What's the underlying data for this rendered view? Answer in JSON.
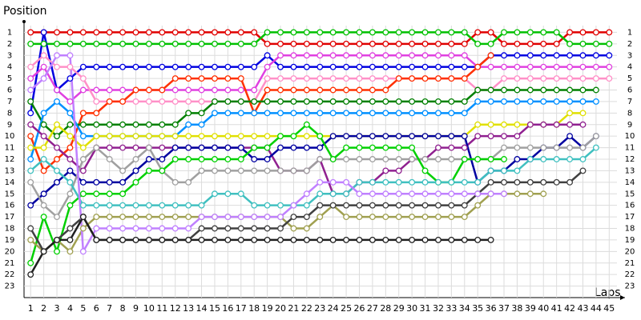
{
  "chart_data": {
    "type": "line",
    "ylabel": "Position",
    "xlabel": "Laps",
    "xlim": [
      0.5,
      46.2
    ],
    "ylim": [
      24,
      0
    ],
    "x": [
      1,
      2,
      3,
      4,
      5,
      6,
      7,
      8,
      9,
      10,
      11,
      12,
      13,
      14,
      15,
      16,
      17,
      18,
      19,
      20,
      21,
      22,
      23,
      24,
      25,
      26,
      27,
      28,
      29,
      30,
      31,
      32,
      33,
      34,
      35,
      36,
      37,
      38,
      39,
      40,
      41,
      42,
      43,
      44,
      45
    ],
    "yticks": [
      1,
      2,
      3,
      4,
      5,
      6,
      7,
      8,
      9,
      10,
      11,
      12,
      13,
      14,
      15,
      16,
      17,
      18,
      19,
      20,
      21,
      22,
      23
    ],
    "grid": true,
    "series": [
      {
        "color": "#e00000",
        "values": [
          1,
          1,
          1,
          1,
          1,
          1,
          1,
          1,
          1,
          1,
          1,
          1,
          1,
          1,
          1,
          1,
          1,
          1,
          2,
          2,
          2,
          2,
          2,
          2,
          2,
          2,
          2,
          2,
          2,
          2,
          2,
          2,
          2,
          2,
          1,
          1,
          2,
          2,
          2,
          2,
          2,
          1,
          1,
          1,
          1
        ]
      },
      {
        "color": "#00c000",
        "values": [
          2,
          2,
          2,
          2,
          2,
          2,
          2,
          2,
          2,
          2,
          2,
          2,
          2,
          2,
          2,
          2,
          2,
          2,
          1,
          1,
          1,
          1,
          1,
          1,
          1,
          1,
          1,
          1,
          1,
          1,
          1,
          1,
          1,
          1,
          2,
          2,
          1,
          1,
          1,
          1,
          1,
          2,
          2,
          2,
          2
        ]
      },
      {
        "color": "#0000e0",
        "values": [
          8,
          1,
          6,
          5,
          4,
          4,
          4,
          4,
          4,
          4,
          4,
          4,
          4,
          4,
          4,
          4,
          4,
          4,
          3,
          4,
          4,
          4,
          4,
          4,
          4,
          4,
          4,
          4,
          4,
          4,
          4,
          4,
          4,
          4,
          4,
          3,
          3,
          3,
          3,
          3,
          3,
          3,
          3,
          3,
          3
        ]
      },
      {
        "color": "#e040e0",
        "values": [
          5,
          4,
          6,
          7,
          6,
          6,
          6,
          6,
          6,
          6,
          6,
          6,
          6,
          6,
          6,
          6,
          6,
          6,
          4,
          3,
          3,
          3,
          3,
          3,
          3,
          3,
          3,
          3,
          3,
          3,
          3,
          3,
          3,
          3,
          4,
          4,
          4,
          4,
          4,
          4,
          4,
          4,
          4,
          4,
          4
        ]
      },
      {
        "color": "#ff90c8",
        "values": [
          4,
          3,
          4,
          4,
          5,
          7,
          7,
          7,
          7,
          7,
          7,
          7,
          7,
          7,
          7,
          7,
          7,
          7,
          5,
          5,
          5,
          5,
          5,
          5,
          5,
          5,
          5,
          5,
          5,
          5,
          5,
          5,
          5,
          5,
          6,
          6,
          5,
          5,
          5,
          5,
          5,
          5,
          5,
          5,
          5
        ]
      },
      {
        "color": "#ff3000",
        "values": [
          10,
          13,
          12,
          11,
          8,
          8,
          7,
          7,
          6,
          6,
          6,
          5,
          5,
          5,
          5,
          5,
          5,
          8,
          6,
          6,
          6,
          6,
          6,
          6,
          6,
          6,
          6,
          6,
          5,
          5,
          5,
          5,
          5,
          5,
          4,
          3,
          null,
          null,
          null,
          null,
          null,
          null,
          null,
          null,
          null
        ]
      },
      {
        "color": "#008000",
        "values": [
          7,
          9,
          10,
          9,
          9,
          9,
          9,
          9,
          9,
          9,
          9,
          9,
          8,
          8,
          7,
          7,
          7,
          7,
          7,
          7,
          7,
          7,
          7,
          7,
          7,
          7,
          7,
          7,
          7,
          7,
          7,
          7,
          7,
          7,
          6,
          6,
          6,
          6,
          6,
          6,
          6,
          6,
          6,
          6,
          null
        ]
      },
      {
        "color": "#0090ff",
        "values": [
          12,
          8,
          7,
          8,
          10,
          10,
          10,
          10,
          10,
          10,
          10,
          10,
          9,
          9,
          8,
          8,
          8,
          8,
          8,
          8,
          8,
          8,
          8,
          8,
          8,
          8,
          8,
          8,
          8,
          8,
          8,
          8,
          8,
          8,
          7,
          7,
          7,
          7,
          7,
          7,
          7,
          7,
          7,
          7,
          null
        ]
      },
      {
        "color": "#e0e000",
        "values": [
          11,
          11,
          9,
          10,
          11,
          10,
          10,
          10,
          10,
          10,
          10,
          10,
          10,
          10,
          10,
          10,
          10,
          10,
          10,
          10,
          10,
          10,
          10,
          10,
          10,
          10,
          10,
          10,
          10,
          10,
          10,
          10,
          10,
          10,
          9,
          9,
          9,
          9,
          9,
          9,
          9,
          8,
          8,
          null,
          null
        ]
      },
      {
        "color": "#902090",
        "values": [
          9,
          10,
          11,
          12,
          13,
          11,
          11,
          11,
          11,
          11,
          11,
          11,
          11,
          11,
          11,
          11,
          11,
          11,
          11,
          13,
          13,
          13,
          12,
          15,
          15,
          14,
          14,
          13,
          13,
          12,
          12,
          11,
          11,
          11,
          10,
          10,
          10,
          10,
          9,
          9,
          9,
          9,
          9,
          null,
          null
        ]
      },
      {
        "color": "#0000a0",
        "values": [
          16,
          15,
          14,
          13,
          14,
          14,
          14,
          14,
          13,
          12,
          12,
          11,
          11,
          11,
          11,
          11,
          11,
          12,
          12,
          11,
          11,
          11,
          11,
          10,
          10,
          10,
          10,
          10,
          10,
          10,
          10,
          10,
          10,
          10,
          14,
          13,
          13,
          12,
          12,
          11,
          11,
          10,
          11,
          10,
          null
        ]
      },
      {
        "color": "#a0a0a0",
        "values": [
          14,
          16,
          17,
          15,
          12,
          11,
          12,
          13,
          12,
          11,
          13,
          14,
          14,
          13,
          13,
          13,
          13,
          13,
          13,
          13,
          13,
          13,
          12,
          12,
          12,
          12,
          12,
          12,
          12,
          12,
          12,
          12,
          12,
          12,
          12,
          12,
          11,
          11,
          11,
          11,
          11,
          11,
          11,
          10,
          null
        ]
      },
      {
        "color": "#00d000",
        "values": [
          21,
          17,
          20,
          16,
          15,
          15,
          15,
          15,
          14,
          13,
          13,
          12,
          12,
          12,
          12,
          12,
          12,
          11,
          11,
          10,
          10,
          9,
          10,
          12,
          11,
          11,
          11,
          11,
          11,
          11,
          13,
          14,
          14,
          12,
          12,
          12,
          12,
          null,
          null,
          null,
          null,
          null,
          null,
          null,
          null
        ]
      },
      {
        "color": "#40c0c0",
        "values": [
          13,
          12,
          13,
          14,
          16,
          16,
          16,
          16,
          16,
          16,
          16,
          16,
          16,
          16,
          15,
          15,
          15,
          16,
          16,
          16,
          16,
          16,
          15,
          15,
          15,
          14,
          14,
          14,
          14,
          14,
          14,
          14,
          14,
          14,
          14,
          13,
          13,
          13,
          12,
          12,
          12,
          12,
          12,
          11,
          null
        ]
      },
      {
        "color": "#a0a050",
        "values": [
          19,
          20,
          19,
          20,
          18,
          17,
          17,
          17,
          17,
          17,
          17,
          17,
          17,
          17,
          17,
          17,
          17,
          17,
          17,
          17,
          18,
          18,
          17,
          16,
          17,
          17,
          17,
          17,
          17,
          17,
          17,
          17,
          17,
          17,
          16,
          15,
          15,
          15,
          15,
          15,
          null,
          null,
          null,
          null,
          null
        ]
      },
      {
        "color": "#404040",
        "values": [
          18,
          20,
          19,
          18,
          17,
          19,
          19,
          19,
          19,
          19,
          19,
          19,
          19,
          18,
          18,
          18,
          18,
          18,
          18,
          18,
          17,
          17,
          16,
          16,
          16,
          16,
          16,
          16,
          16,
          16,
          16,
          16,
          16,
          16,
          15,
          14,
          14,
          14,
          14,
          14,
          14,
          14,
          13,
          null,
          null
        ]
      },
      {
        "color": "#c080ff",
        "values": [
          6,
          5,
          3,
          3,
          20,
          18,
          18,
          18,
          18,
          18,
          18,
          18,
          18,
          17,
          17,
          17,
          17,
          17,
          17,
          17,
          16,
          15,
          14,
          14,
          14,
          15,
          15,
          15,
          15,
          15,
          15,
          15,
          15,
          15,
          15,
          15,
          15,
          null,
          null,
          null,
          null,
          null,
          null,
          null,
          null
        ]
      },
      {
        "color": "#202020",
        "values": [
          22,
          20,
          19,
          19,
          17,
          19,
          19,
          19,
          19,
          19,
          19,
          19,
          19,
          19,
          19,
          19,
          19,
          19,
          19,
          19,
          19,
          19,
          19,
          19,
          19,
          19,
          19,
          19,
          19,
          19,
          19,
          19,
          19,
          19,
          19,
          19,
          null,
          null,
          null,
          null,
          null,
          null,
          null,
          null,
          null
        ]
      }
    ]
  }
}
